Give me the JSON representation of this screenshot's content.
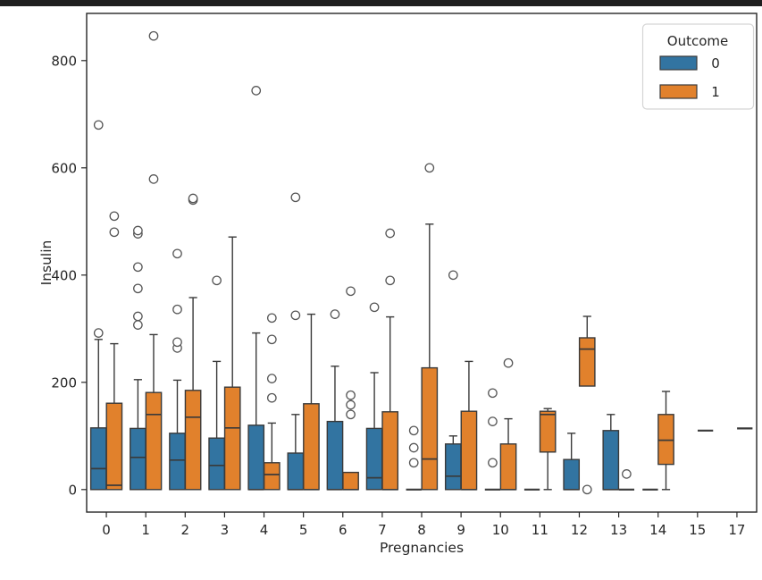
{
  "window": {
    "top_bar_color": "#1f1f1f"
  },
  "chart_data": {
    "type": "grouped_boxplot",
    "title": "",
    "xlabel": "Pregnancies",
    "ylabel": "Insulin",
    "x_categories": [
      "0",
      "1",
      "2",
      "3",
      "4",
      "5",
      "6",
      "7",
      "8",
      "9",
      "10",
      "11",
      "12",
      "13",
      "14",
      "15",
      "17"
    ],
    "y_ticks": [
      0,
      200,
      400,
      600,
      800
    ],
    "ylim": [
      -42,
      888
    ],
    "grid": false,
    "legend": {
      "title": "Outcome",
      "position": "upper-right",
      "entries": [
        {
          "label": "0",
          "color": "#3274a1"
        },
        {
          "label": "1",
          "color": "#e1812c"
        }
      ]
    },
    "style": {
      "edge_color": "#3a3a3a",
      "flier_edge_color": "#555555",
      "spine_color": "#262626",
      "tick_label_color": "#262626"
    },
    "series": [
      {
        "name": "0",
        "color": "#3274a1",
        "boxes": [
          {
            "lo": 0,
            "q1": 0,
            "med": 39,
            "q3": 115,
            "hi": 280,
            "fliers": [
              292,
              680
            ]
          },
          {
            "lo": 0,
            "q1": 0,
            "med": 60,
            "q3": 114,
            "hi": 205,
            "fliers": [
              307,
              323,
              375,
              415,
              477,
              483
            ]
          },
          {
            "lo": 0,
            "q1": 0,
            "med": 55,
            "q3": 105,
            "hi": 204,
            "fliers": [
              264,
              275,
              336,
              440
            ]
          },
          {
            "lo": 0,
            "q1": 0,
            "med": 45,
            "q3": 96,
            "hi": 239,
            "fliers": [
              390
            ]
          },
          {
            "lo": 0,
            "q1": 0,
            "med": 0,
            "q3": 120,
            "hi": 292,
            "fliers": [
              744
            ]
          },
          {
            "lo": 0,
            "q1": 0,
            "med": 0,
            "q3": 68,
            "hi": 140,
            "fliers": [
              325,
              545
            ]
          },
          {
            "lo": 0,
            "q1": 0,
            "med": 0,
            "q3": 127,
            "hi": 230,
            "fliers": [
              327
            ]
          },
          {
            "lo": 0,
            "q1": 0,
            "med": 22,
            "q3": 114,
            "hi": 218,
            "fliers": [
              340
            ]
          },
          {
            "lo": 0,
            "q1": 0,
            "med": 0,
            "q3": 0,
            "hi": 0,
            "fliers": [
              50,
              78,
              110
            ]
          },
          {
            "lo": 0,
            "q1": 0,
            "med": 25,
            "q3": 85,
            "hi": 100,
            "fliers": [
              400
            ]
          },
          {
            "lo": 0,
            "q1": 0,
            "med": 0,
            "q3": 0,
            "hi": 0,
            "fliers": [
              50,
              127,
              180
            ]
          },
          {
            "lo": 0,
            "q1": 0,
            "med": 0,
            "q3": 0,
            "hi": 0,
            "fliers": []
          },
          {
            "lo": 0,
            "q1": 0,
            "med": 0,
            "q3": 56,
            "hi": 105,
            "fliers": []
          },
          {
            "lo": 0,
            "q1": 0,
            "med": 0,
            "q3": 110,
            "hi": 140,
            "fliers": []
          },
          {
            "lo": 0,
            "q1": 0,
            "med": 0,
            "q3": 0,
            "hi": 0,
            "fliers": []
          },
          null,
          null
        ]
      },
      {
        "name": "1",
        "color": "#e1812c",
        "boxes": [
          {
            "lo": 0,
            "q1": 0,
            "med": 8,
            "q3": 161,
            "hi": 272,
            "fliers": [
              480,
              510
            ]
          },
          {
            "lo": 0,
            "q1": 0,
            "med": 140,
            "q3": 181,
            "hi": 289,
            "fliers": [
              579,
              846
            ]
          },
          {
            "lo": 0,
            "q1": 0,
            "med": 135,
            "q3": 185,
            "hi": 358,
            "fliers": [
              540,
              543
            ]
          },
          {
            "lo": 0,
            "q1": 0,
            "med": 115,
            "q3": 191,
            "hi": 471,
            "fliers": []
          },
          {
            "lo": 0,
            "q1": 0,
            "med": 28,
            "q3": 50,
            "hi": 124,
            "fliers": [
              171,
              207,
              280,
              320
            ]
          },
          {
            "lo": 0,
            "q1": 0,
            "med": 0,
            "q3": 160,
            "hi": 327,
            "fliers": []
          },
          {
            "lo": 0,
            "q1": 0,
            "med": 0,
            "q3": 32,
            "hi": 32,
            "fliers": [
              140,
              158,
              176,
              370
            ]
          },
          {
            "lo": 0,
            "q1": 0,
            "med": 0,
            "q3": 145,
            "hi": 322,
            "fliers": [
              390,
              478
            ]
          },
          {
            "lo": 0,
            "q1": 0,
            "med": 57,
            "q3": 227,
            "hi": 495,
            "fliers": [
              600
            ]
          },
          {
            "lo": 0,
            "q1": 0,
            "med": 0,
            "q3": 146,
            "hi": 239,
            "fliers": []
          },
          {
            "lo": 0,
            "q1": 0,
            "med": 0,
            "q3": 85,
            "hi": 132,
            "fliers": [
              236
            ]
          },
          {
            "lo": 0,
            "q1": 70,
            "med": 140,
            "q3": 146,
            "hi": 151,
            "fliers": []
          },
          {
            "lo": 193,
            "q1": 193,
            "med": 262,
            "q3": 283,
            "hi": 323,
            "fliers": [
              0
            ]
          },
          {
            "lo": 0,
            "q1": 0,
            "med": 0,
            "q3": 0,
            "hi": 0,
            "fliers": [
              29
            ]
          },
          {
            "lo": 0,
            "q1": 47,
            "med": 92,
            "q3": 140,
            "hi": 183,
            "fliers": []
          },
          {
            "lo": 110,
            "q1": 110,
            "med": 110,
            "q3": 110,
            "hi": 110,
            "fliers": []
          },
          {
            "lo": 114,
            "q1": 114,
            "med": 114,
            "q3": 114,
            "hi": 114,
            "fliers": []
          }
        ]
      }
    ]
  }
}
